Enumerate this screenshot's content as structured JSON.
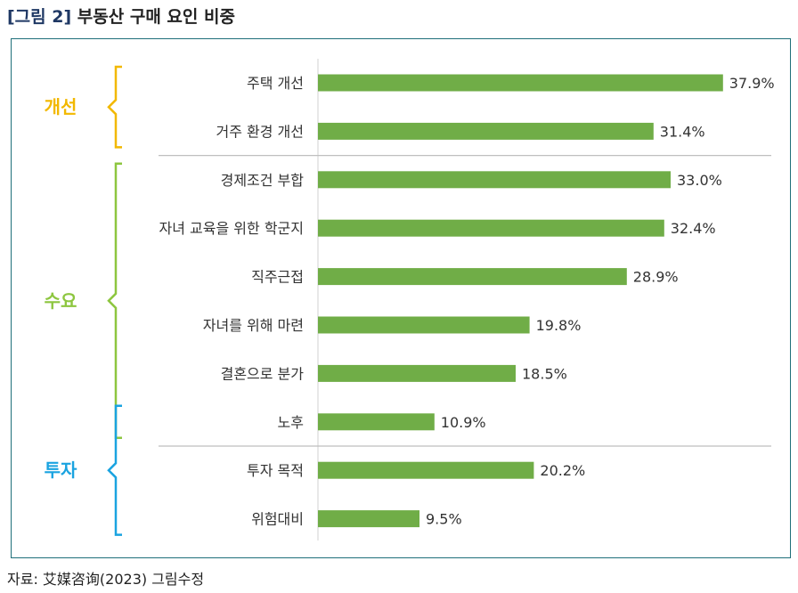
{
  "figure": {
    "label": "[그림 2]",
    "title": "부동산 구매 요인 비중",
    "source": "자료: 艾媒咨询(2023) 그림수정"
  },
  "chart_data": {
    "type": "bar",
    "orientation": "horizontal",
    "categories": [
      "주택 개선",
      "거주 환경 개선",
      "경제조건 부합",
      "자녀 교육을 위한 학군지",
      "직주근접",
      "자녀를 위해 마련",
      "결혼으로 분가",
      "노후",
      "투자 목적",
      "위험대비"
    ],
    "values": [
      37.9,
      31.4,
      33.0,
      32.4,
      28.9,
      19.8,
      18.5,
      10.9,
      20.2,
      9.5
    ],
    "value_labels": [
      "37.9%",
      "31.4%",
      "33.0%",
      "32.4%",
      "28.9%",
      "19.8%",
      "18.5%",
      "10.9%",
      "20.2%",
      "9.5%"
    ],
    "groups": [
      {
        "name": "개선",
        "color": "#f2b800"
      },
      {
        "name": "수요",
        "color": "#8dc63f"
      },
      {
        "name": "투자",
        "color": "#1aa3e0"
      }
    ],
    "bar_color": "#70ad47",
    "unit": "%",
    "grid": false,
    "legend": "none"
  }
}
